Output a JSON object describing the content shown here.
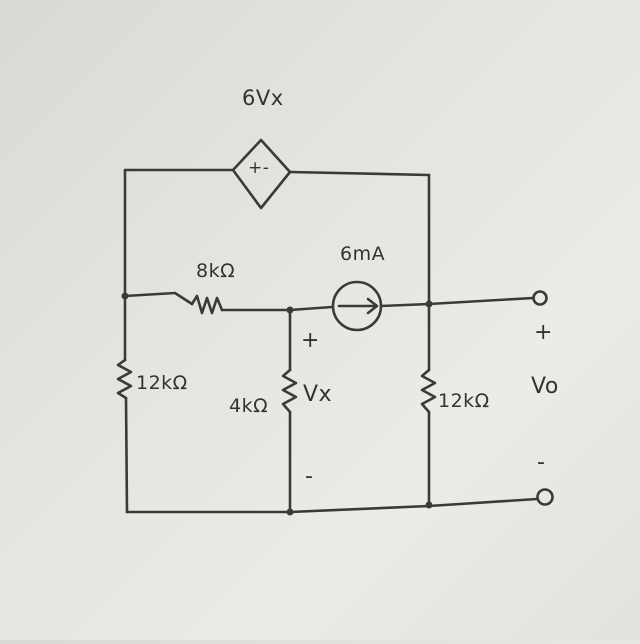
{
  "colors": {
    "ink": "#3a3a3a",
    "paper": "#e6e6e0"
  },
  "labels": {
    "dep_source": "6Vx",
    "dep_source_polarity": "+-",
    "current_source": "6mA",
    "r_top": "8kΩ",
    "r_left": "12kΩ",
    "r_middle": "4kΩ",
    "r_right": "12kΩ",
    "vx": "Vx",
    "vx_plus": "+",
    "vx_minus": "-",
    "vo": "Vo",
    "vo_plus": "+",
    "vo_minus": "-"
  },
  "icons": [
    "dependent-voltage-source-icon",
    "current-source-icon",
    "resistor-icon",
    "output-terminal-icon"
  ]
}
